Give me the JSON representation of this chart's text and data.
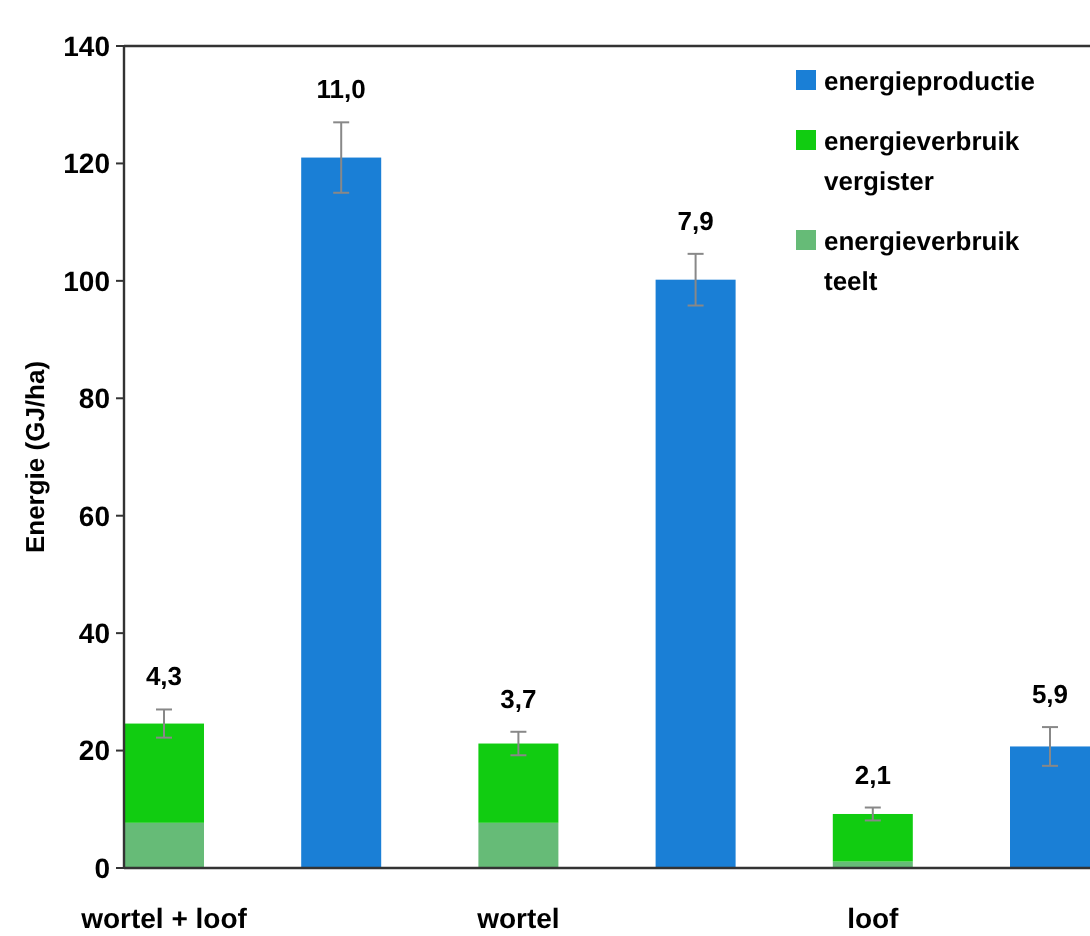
{
  "chart_data": {
    "type": "bar",
    "stacked": true,
    "ylabel": "Energie (GJ/ha)",
    "categories": [
      "wortel + loof",
      null,
      "wortel",
      null,
      "loof",
      null
    ],
    "ylim": [
      0,
      140
    ],
    "yticks": [
      0,
      20,
      40,
      60,
      80,
      100,
      120,
      140
    ],
    "grid": false,
    "legend": "top right",
    "series": [
      {
        "name": "energieverbruik teelt",
        "color": "#66bb77",
        "values": [
          7.7,
          null,
          7.7,
          null,
          1.1,
          null
        ]
      },
      {
        "name": "energieverbruik vergister",
        "color": "#11cc11",
        "values": [
          16.9,
          null,
          13.5,
          null,
          8.1,
          null
        ],
        "errors": [
          2.4,
          null,
          2,
          null,
          1.1,
          null
        ]
      },
      {
        "name": "energieproductie",
        "color": "#1a7fd6",
        "values": [
          null,
          121,
          null,
          100.2,
          null,
          20.7
        ],
        "errors": [
          null,
          6,
          null,
          4.4,
          null,
          3.3
        ]
      }
    ],
    "annotations": [
      "4,3",
      "11,0",
      "3,7",
      "7,9",
      "2,1",
      "5,9"
    ]
  }
}
